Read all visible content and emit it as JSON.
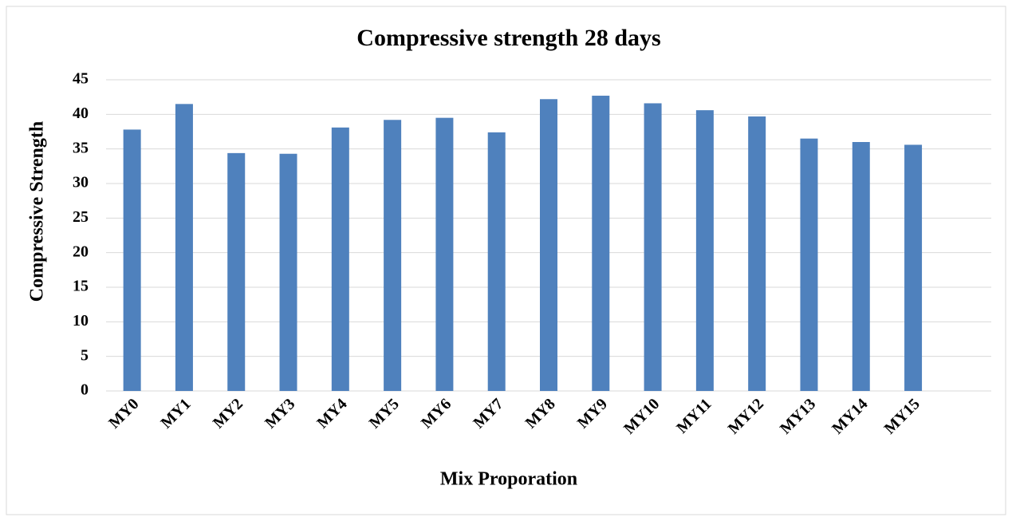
{
  "chart_data": {
    "type": "bar",
    "title": "Compressive strength 28 days",
    "x_label": "Mix Proporation",
    "y_label": "Compressive Strength",
    "categories": [
      "MY0",
      "MY1",
      "MY2",
      "MY3",
      "MY4",
      "MY5",
      "MY6",
      "MY7",
      "MY8",
      "MY9",
      "MY10",
      "MY11",
      "MY12",
      "MY13",
      "MY14",
      "MY15",
      null
    ],
    "values": [
      37.8,
      41.5,
      34.4,
      34.3,
      38.1,
      39.2,
      39.5,
      37.4,
      42.2,
      42.7,
      41.6,
      40.6,
      39.7,
      36.5,
      36.0,
      35.6,
      null
    ],
    "color": "#4f81bd",
    "ylim": [
      0,
      45
    ],
    "yticks": [
      0,
      5,
      10,
      15,
      20,
      25,
      30,
      35,
      40,
      45
    ],
    "grid": true
  }
}
